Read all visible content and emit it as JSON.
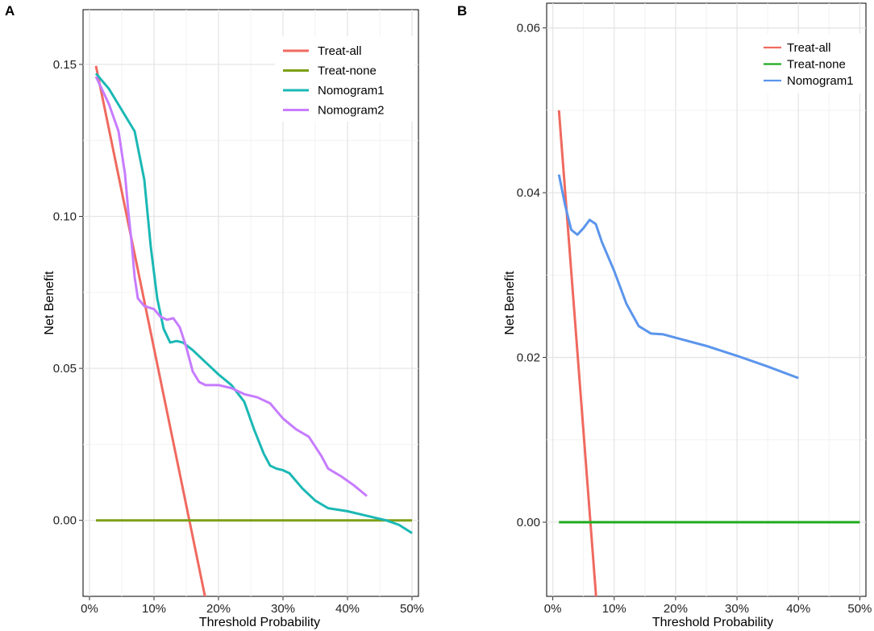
{
  "chart_data": [
    {
      "panel": "A",
      "type": "line",
      "xlabel": "Threshold Probability",
      "ylabel": "Net Benefit",
      "xlim": [
        -0.01,
        0.51
      ],
      "ylim": [
        -0.025,
        0.168
      ],
      "x_ticks": [
        0,
        0.1,
        0.2,
        0.3,
        0.4,
        0.5
      ],
      "x_tick_labels": [
        "0%",
        "10%",
        "20%",
        "30%",
        "40%",
        "50%"
      ],
      "y_ticks": [
        0.0,
        0.05,
        0.1,
        0.15
      ],
      "y_tick_labels": [
        "0.00",
        "0.05",
        "0.10",
        "0.15"
      ],
      "grid": true,
      "legend_position": "top-right",
      "series": [
        {
          "name": "Treat-all",
          "color": "#F0695F",
          "points": [
            [
              0.01,
              0.1495
            ],
            [
              0.18,
              -0.026
            ]
          ]
        },
        {
          "name": "Treat-none",
          "color": "#7CA016",
          "points": [
            [
              0.01,
              0.0
            ],
            [
              0.5,
              0.0
            ]
          ]
        },
        {
          "name": "Nomogram1",
          "color": "#1BB8B4",
          "points": [
            [
              0.01,
              0.147
            ],
            [
              0.03,
              0.142
            ],
            [
              0.05,
              0.135
            ],
            [
              0.07,
              0.128
            ],
            [
              0.085,
              0.112
            ],
            [
              0.095,
              0.09
            ],
            [
              0.105,
              0.073
            ],
            [
              0.115,
              0.063
            ],
            [
              0.125,
              0.0585
            ],
            [
              0.135,
              0.059
            ],
            [
              0.145,
              0.0585
            ],
            [
              0.16,
              0.056
            ],
            [
              0.18,
              0.052
            ],
            [
              0.2,
              0.048
            ],
            [
              0.22,
              0.0445
            ],
            [
              0.24,
              0.039
            ],
            [
              0.255,
              0.03
            ],
            [
              0.27,
              0.022
            ],
            [
              0.28,
              0.018
            ],
            [
              0.29,
              0.017
            ],
            [
              0.3,
              0.0165
            ],
            [
              0.31,
              0.0155
            ],
            [
              0.33,
              0.0105
            ],
            [
              0.35,
              0.0065
            ],
            [
              0.37,
              0.004
            ],
            [
              0.4,
              0.003
            ],
            [
              0.43,
              0.0015
            ],
            [
              0.46,
              0.0
            ],
            [
              0.48,
              -0.0015
            ],
            [
              0.5,
              -0.0042
            ]
          ]
        },
        {
          "name": "Nomogram2",
          "color": "#C77CFF",
          "points": [
            [
              0.01,
              0.146
            ],
            [
              0.03,
              0.137
            ],
            [
              0.045,
              0.128
            ],
            [
              0.055,
              0.114
            ],
            [
              0.06,
              0.102
            ],
            [
              0.065,
              0.092
            ],
            [
              0.07,
              0.08
            ],
            [
              0.075,
              0.073
            ],
            [
              0.085,
              0.0705
            ],
            [
              0.1,
              0.0695
            ],
            [
              0.11,
              0.067
            ],
            [
              0.12,
              0.066
            ],
            [
              0.13,
              0.0665
            ],
            [
              0.14,
              0.0635
            ],
            [
              0.15,
              0.057
            ],
            [
              0.16,
              0.049
            ],
            [
              0.17,
              0.0455
            ],
            [
              0.18,
              0.0445
            ],
            [
              0.2,
              0.0445
            ],
            [
              0.22,
              0.0435
            ],
            [
              0.24,
              0.0415
            ],
            [
              0.26,
              0.0405
            ],
            [
              0.28,
              0.0385
            ],
            [
              0.3,
              0.0335
            ],
            [
              0.32,
              0.03
            ],
            [
              0.34,
              0.0275
            ],
            [
              0.36,
              0.021
            ],
            [
              0.37,
              0.017
            ],
            [
              0.39,
              0.0145
            ],
            [
              0.41,
              0.0115
            ],
            [
              0.43,
              0.008
            ]
          ]
        }
      ]
    },
    {
      "panel": "B",
      "type": "line",
      "xlabel": "Threshold Probability",
      "ylabel": "Net Benefit",
      "xlim": [
        -0.01,
        0.51
      ],
      "ylim": [
        -0.009,
        0.063
      ],
      "x_ticks": [
        0,
        0.1,
        0.2,
        0.3,
        0.4,
        0.5
      ],
      "x_tick_labels": [
        "0%",
        "10%",
        "20%",
        "30%",
        "40%",
        "50%"
      ],
      "y_ticks": [
        0.0,
        0.02,
        0.04,
        0.06
      ],
      "y_tick_labels": [
        "0.00",
        "0.02",
        "0.04",
        "0.06"
      ],
      "grid": true,
      "legend_position": "top-right",
      "series": [
        {
          "name": "Treat-all",
          "color": "#F0695F",
          "points": [
            [
              0.01,
              0.05
            ],
            [
              0.071,
              -0.0095
            ]
          ]
        },
        {
          "name": "Treat-none",
          "color": "#1EAA1E",
          "points": [
            [
              0.01,
              0.0
            ],
            [
              0.5,
              0.0
            ]
          ]
        },
        {
          "name": "Nomogram1",
          "color": "#5B95EC",
          "points": [
            [
              0.01,
              0.0422
            ],
            [
              0.02,
              0.0385
            ],
            [
              0.03,
              0.0355
            ],
            [
              0.04,
              0.0349
            ],
            [
              0.05,
              0.0357
            ],
            [
              0.06,
              0.0367
            ],
            [
              0.07,
              0.0362
            ],
            [
              0.08,
              0.034
            ],
            [
              0.1,
              0.0305
            ],
            [
              0.12,
              0.0265
            ],
            [
              0.14,
              0.0238
            ],
            [
              0.16,
              0.0229
            ],
            [
              0.18,
              0.0228
            ],
            [
              0.2,
              0.0224
            ],
            [
              0.25,
              0.0214
            ],
            [
              0.3,
              0.0202
            ],
            [
              0.35,
              0.0189
            ],
            [
              0.4,
              0.0175
            ]
          ]
        }
      ]
    }
  ]
}
